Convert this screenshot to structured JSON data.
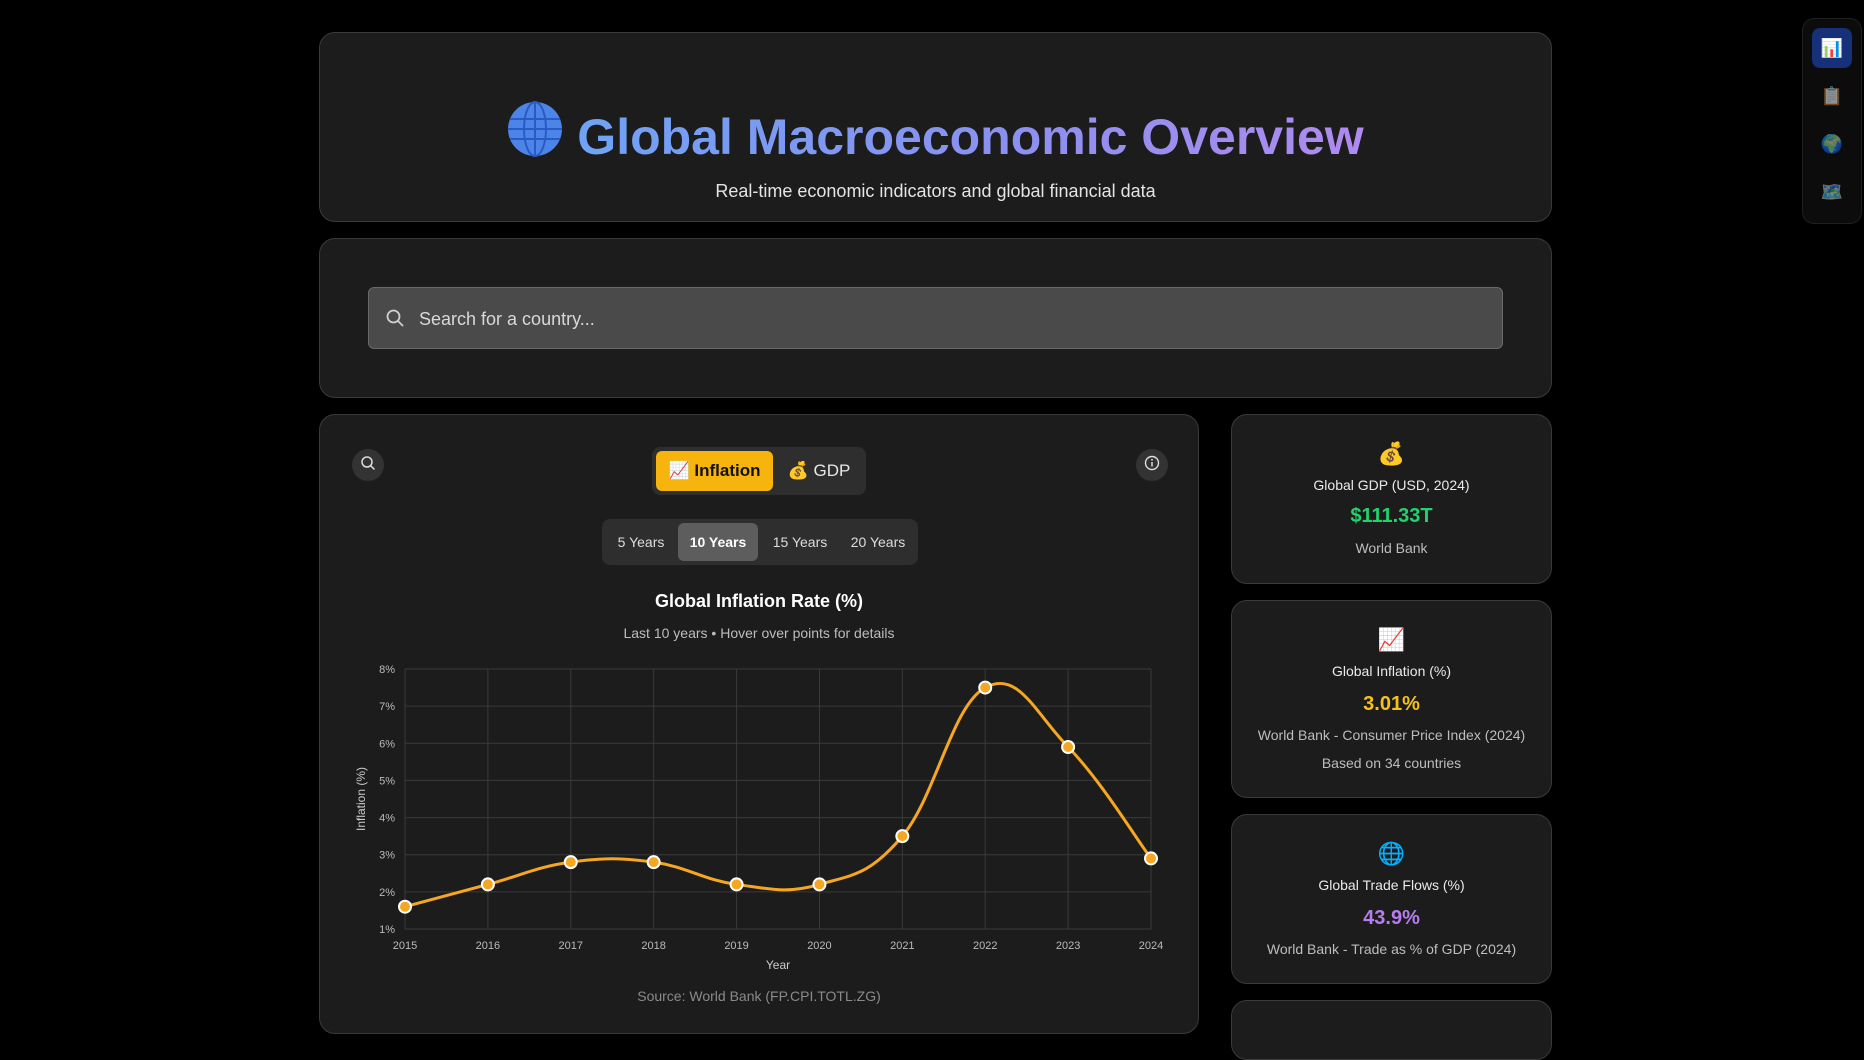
{
  "header": {
    "title": "Global Macroeconomic Overview",
    "subtitle": "Real-time economic indicators and global financial data",
    "icon": "globe-icon"
  },
  "search": {
    "placeholder": "Search for a country...",
    "value": ""
  },
  "chart_panel": {
    "metric_tabs": [
      {
        "icon": "📈",
        "label": "Inflation",
        "active": true
      },
      {
        "icon": "💰",
        "label": "GDP",
        "active": false
      }
    ],
    "ranges": [
      {
        "label": "5 Years",
        "active": false
      },
      {
        "label": "10 Years",
        "active": true
      },
      {
        "label": "15 Years",
        "active": false
      },
      {
        "label": "20 Years",
        "active": false
      }
    ],
    "source": "Source: World Bank (FP.CPI.TOTL.ZG)"
  },
  "chart_data": {
    "type": "line",
    "title": "Global Inflation Rate (%)",
    "subtitle": "Last 10 years • Hover over points for details",
    "xlabel": "Year",
    "ylabel": "Inflation (%)",
    "x": [
      "2015",
      "2016",
      "2017",
      "2018",
      "2019",
      "2020",
      "2021",
      "2022",
      "2023",
      "2024"
    ],
    "y_ticks": [
      "1%",
      "2%",
      "3%",
      "4%",
      "5%",
      "6%",
      "7%",
      "8%"
    ],
    "ylim": [
      1,
      8
    ],
    "grid": true,
    "series": [
      {
        "values": [
          1.6,
          2.2,
          2.8,
          2.8,
          2.2,
          2.2,
          3.5,
          7.5,
          5.9,
          2.9
        ],
        "color": "#f5a623"
      }
    ]
  },
  "stats": {
    "gdp": {
      "icon": "💰",
      "label": "Global GDP (USD, 2024)",
      "value": "$111.33T",
      "note": "World Bank",
      "color": "#22d36b"
    },
    "inflation": {
      "icon": "📈",
      "label": "Global Inflation (%)",
      "value": "3.01%",
      "note": "World Bank - Consumer Price Index (2024)",
      "note2": "Based on 34 countries",
      "color": "#f6c21a"
    },
    "trade": {
      "icon": "🌐",
      "label": "Global Trade Flows (%)",
      "value": "43.9%",
      "note": "World Bank - Trade as % of GDP (2024)",
      "color": "#b67cf0"
    }
  },
  "side_nav": [
    {
      "icon": "📊",
      "name": "charts",
      "active": true
    },
    {
      "icon": "📋",
      "name": "clipboard",
      "active": false
    },
    {
      "icon": "🌍",
      "name": "globe",
      "active": false
    },
    {
      "icon": "🗺️",
      "name": "map",
      "active": false
    }
  ]
}
